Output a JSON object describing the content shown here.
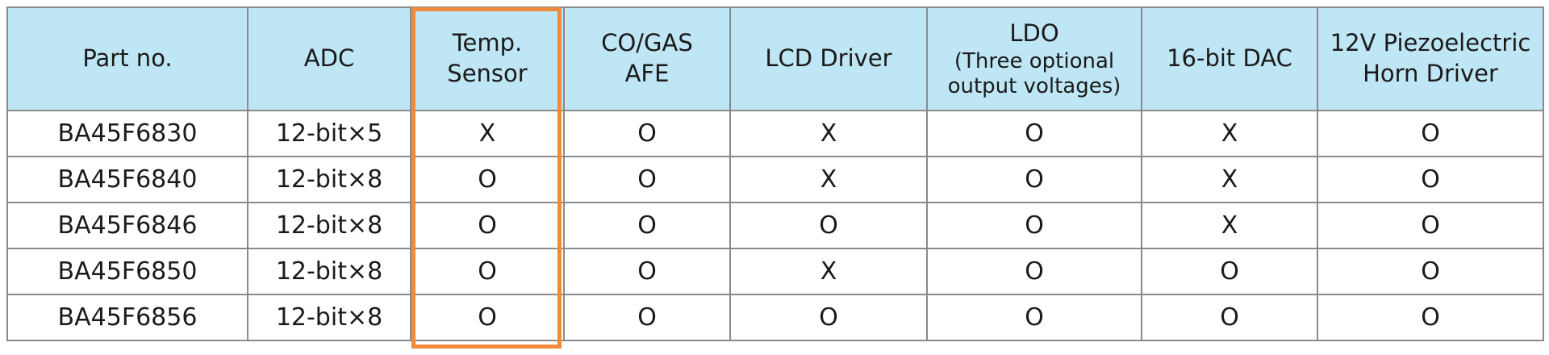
{
  "table": {
    "headers": [
      {
        "lines": [
          "Part no."
        ],
        "sub": []
      },
      {
        "lines": [
          "ADC"
        ],
        "sub": []
      },
      {
        "lines": [
          "Temp.",
          "Sensor"
        ],
        "sub": []
      },
      {
        "lines": [
          "CO/GAS",
          "AFE"
        ],
        "sub": []
      },
      {
        "lines": [
          "LCD Driver"
        ],
        "sub": []
      },
      {
        "lines": [
          "LDO"
        ],
        "sub": [
          "(Three optional",
          "output voltages)"
        ]
      },
      {
        "lines": [
          "16-bit DAC"
        ],
        "sub": []
      },
      {
        "lines": [
          "12V Piezoelectric",
          "Horn Driver"
        ],
        "sub": []
      }
    ],
    "rows": [
      [
        "BA45F6830",
        "12-bit×5",
        "X",
        "O",
        "X",
        "O",
        "X",
        "O"
      ],
      [
        "BA45F6840",
        "12-bit×8",
        "O",
        "O",
        "X",
        "O",
        "X",
        "O"
      ],
      [
        "BA45F6846",
        "12-bit×8",
        "O",
        "O",
        "O",
        "O",
        "X",
        "O"
      ],
      [
        "BA45F6850",
        "12-bit×8",
        "O",
        "O",
        "X",
        "O",
        "O",
        "O"
      ],
      [
        "BA45F6856",
        "12-bit×8",
        "O",
        "O",
        "O",
        "O",
        "O",
        "O"
      ]
    ],
    "highlighted_column": "Temp. Sensor",
    "colors": {
      "header_bg": "#bfe6f4",
      "grid": "#8a8a8a",
      "highlight": "#f08a3c"
    }
  }
}
